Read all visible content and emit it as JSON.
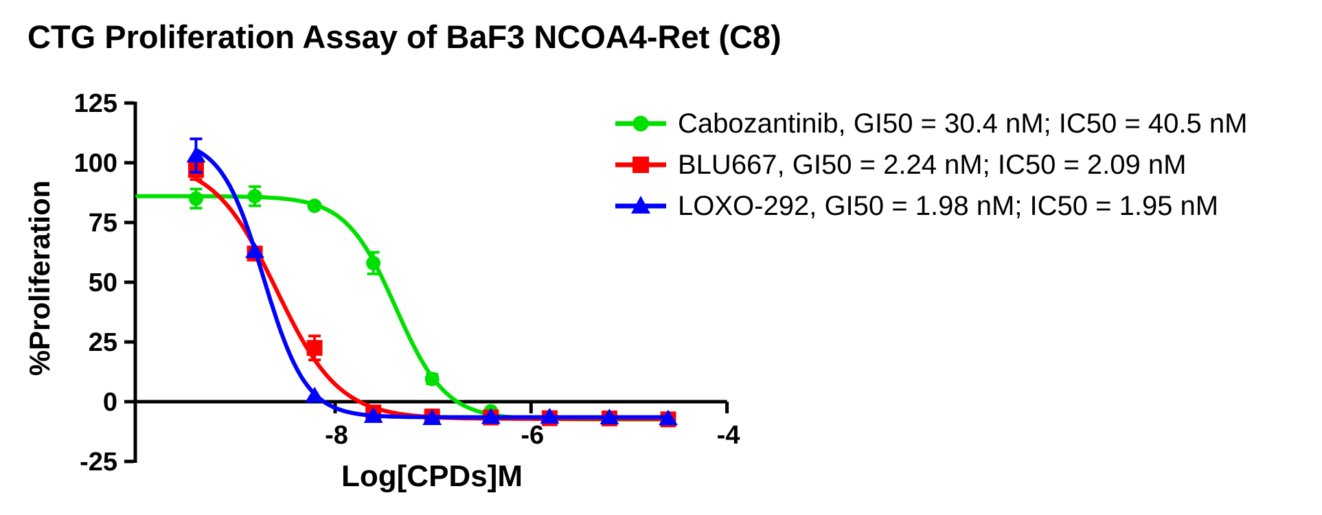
{
  "title": "CTG Proliferation Assay of BaF3 NCOA4-Ret (C8)",
  "chart_data": {
    "type": "line",
    "title": "CTG Proliferation Assay of BaF3 NCOA4-Ret (C8)",
    "xlabel": "Log[CPDs]M",
    "ylabel": "%Proliferation",
    "xlim": [
      -10.04,
      -3.99
    ],
    "ylim": [
      -25,
      125
    ],
    "x_ticks": [
      -8,
      -6,
      -4
    ],
    "y_ticks": [
      125,
      100,
      75,
      50,
      25,
      0,
      -25
    ],
    "x_axis_at_y": 0,
    "grid": false,
    "legend_position": "top-right",
    "x": [
      -9.42,
      -8.82,
      -8.21,
      -7.61,
      -7.01,
      -6.41,
      -5.81,
      -5.2,
      -4.6
    ],
    "series": [
      {
        "name": "Cabozantinib",
        "label": "Cabozantinib, GI50 = 30.4 nM; IC50 = 40.5 nM",
        "gi50_nM": 30.4,
        "ic50_nM": 40.5,
        "color": "#00E000",
        "marker": "circle",
        "values": [
          85,
          86,
          82,
          58,
          9.5,
          -4,
          -6.5,
          -6.8,
          -7.5
        ],
        "errors": [
          4,
          4,
          0,
          4.5,
          2,
          0,
          0,
          0,
          0
        ],
        "fit": {
          "top": 86,
          "bottom": -7.4,
          "logIC50": -7.38,
          "hill": 1.7,
          "from": -10.02,
          "to": -4.58
        }
      },
      {
        "name": "BLU667",
        "label": "BLU667, GI50 = 2.24 nM; IC50 = 2.09 nM",
        "gi50_nM": 2.24,
        "ic50_nM": 2.09,
        "color": "#FF0000",
        "marker": "square",
        "values": [
          97,
          62,
          22.5,
          -4.5,
          -6.2,
          -6.6,
          -6.9,
          -7.0,
          -7.4
        ],
        "errors": [
          4,
          0,
          5,
          0,
          0,
          0,
          0,
          0,
          0
        ],
        "fit": {
          "top": 101,
          "bottom": -7.2,
          "logIC50": -8.6,
          "hill": 1.35,
          "from": -9.42,
          "to": -4.58
        }
      },
      {
        "name": "LOXO-292",
        "label": "LOXO-292, GI50 = 1.98 nM; IC50 = 1.95 nM",
        "gi50_nM": 1.98,
        "ic50_nM": 1.95,
        "color": "#0000FF",
        "marker": "triangle",
        "values": [
          103,
          63,
          2.5,
          -6.0,
          -6.9,
          -6.4,
          -6.3,
          -6.6,
          -7.0
        ],
        "errors": [
          7,
          0,
          0,
          0,
          0,
          0,
          0,
          0,
          0
        ],
        "fit": {
          "top": 110,
          "bottom": -6.5,
          "logIC50": -8.73,
          "hill": 2.0,
          "from": -9.42,
          "to": -4.58
        }
      }
    ]
  }
}
